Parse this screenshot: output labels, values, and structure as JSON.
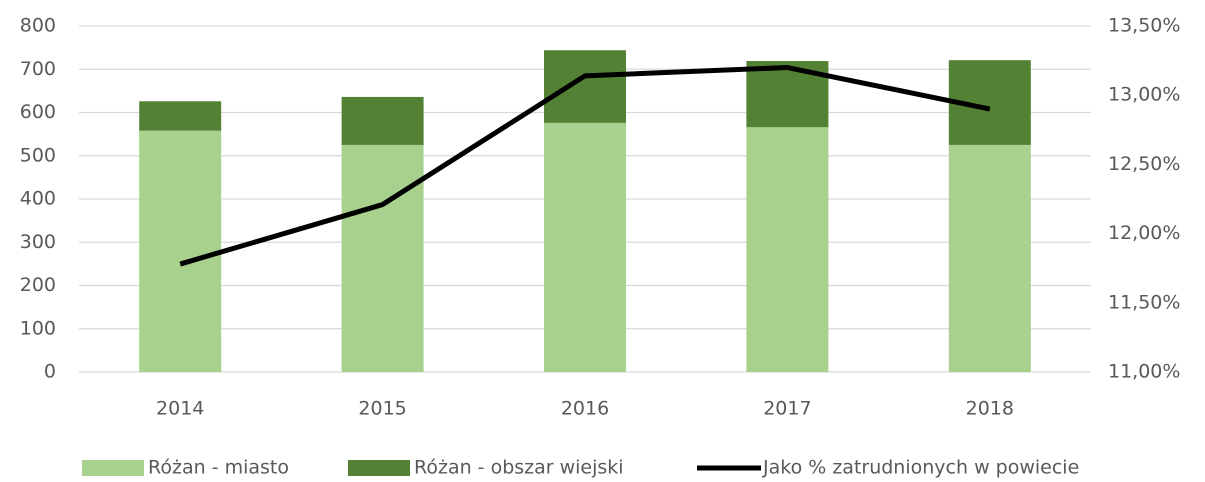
{
  "chart_data": {
    "type": "bar",
    "categories": [
      "2014",
      "2015",
      "2016",
      "2017",
      "2018"
    ],
    "series": [
      {
        "name": "Różan - miasto",
        "color": "#a9d18e",
        "values": [
          558,
          525,
          576,
          566,
          525
        ]
      },
      {
        "name": "Różan - obszar wiejski",
        "color": "#548235",
        "values": [
          68,
          111,
          168,
          153,
          196
        ]
      },
      {
        "name": "Jako % zatrudnionych w powiecie",
        "color": "#000000",
        "type": "line",
        "axis": "y2",
        "values": [
          11.78,
          12.21,
          13.14,
          13.2,
          12.9
        ]
      }
    ],
    "ylim": [
      0,
      800
    ],
    "yticks": [
      0,
      100,
      200,
      300,
      400,
      500,
      600,
      700,
      800
    ],
    "y2lim": [
      11,
      13.5
    ],
    "y2ticks": [
      {
        "value": 11,
        "label": "11,00%"
      },
      {
        "value": 11.5,
        "label": "11,50%"
      },
      {
        "value": 12,
        "label": "12,00%"
      },
      {
        "value": 12.5,
        "label": "12,50%"
      },
      {
        "value": 13,
        "label": "13,00%"
      },
      {
        "value": 13.5,
        "label": "13,50%"
      }
    ],
    "stacked": true,
    "grid": true,
    "legend": "bottom"
  }
}
